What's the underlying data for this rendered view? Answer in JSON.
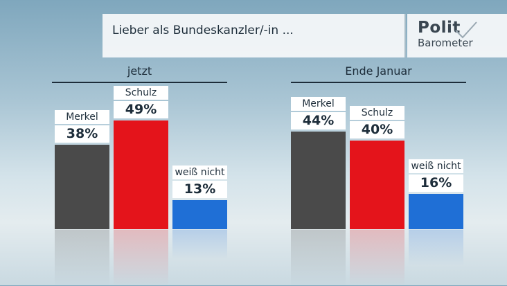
{
  "header": {
    "title": "Lieber als Bundeskanzler/-in ..."
  },
  "logo": {
    "line1": "Polit",
    "line2": "Barometer"
  },
  "colors": {
    "merkel": "#4a4a4a",
    "schulz": "#e4141b",
    "unsure": "#1f6fd6"
  },
  "chart_data": [
    {
      "type": "bar",
      "title": "jetzt",
      "categories": [
        "Merkel",
        "Schulz",
        "weiß nicht"
      ],
      "values": [
        38,
        49,
        13
      ],
      "labels": [
        "38%",
        "49%",
        "13%"
      ]
    },
    {
      "type": "bar",
      "title": "Ende Januar",
      "categories": [
        "Merkel",
        "Schulz",
        "weiß nicht"
      ],
      "values": [
        44,
        40,
        16
      ],
      "labels": [
        "44%",
        "40%",
        "16%"
      ]
    }
  ]
}
